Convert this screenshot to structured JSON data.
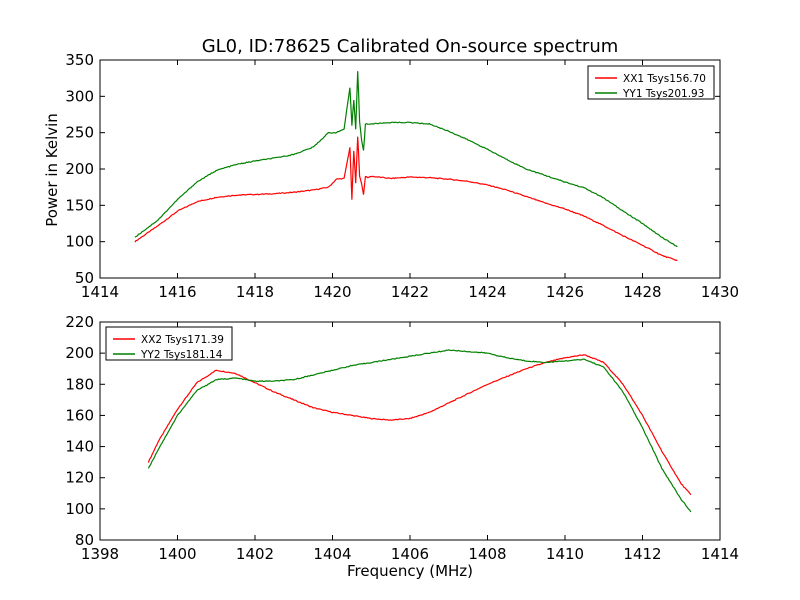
{
  "chart_data": [
    {
      "type": "line",
      "title": "GL0, ID:78625 Calibrated On-source spectrum",
      "xlabel": "",
      "ylabel": "Power in Kelvin",
      "xlim": [
        1414,
        1430
      ],
      "ylim": [
        50,
        350
      ],
      "xticks": [
        "1414",
        "1416",
        "1418",
        "1420",
        "1422",
        "1424",
        "1426",
        "1428",
        "1430"
      ],
      "yticks": [
        "50",
        "100",
        "150",
        "200",
        "250",
        "300",
        "350"
      ],
      "legend_position": "top-right",
      "grid": false,
      "series": [
        {
          "name": "XX1 Tsys156.70",
          "color": "#ff0000",
          "x": [
            1414.9,
            1415.5,
            1416.0,
            1416.5,
            1417.0,
            1417.5,
            1418.0,
            1418.5,
            1419.0,
            1419.5,
            1419.9,
            1420.1,
            1420.3,
            1420.45,
            1420.5,
            1420.55,
            1420.6,
            1420.65,
            1420.7,
            1420.75,
            1420.8,
            1420.85,
            1420.9,
            1421.0,
            1421.5,
            1422.0,
            1422.5,
            1423.0,
            1423.5,
            1424.0,
            1424.5,
            1425.0,
            1425.5,
            1426.0,
            1426.5,
            1427.0,
            1427.5,
            1428.0,
            1428.5,
            1428.9
          ],
          "values": [
            100,
            122,
            142,
            155,
            161,
            164,
            165,
            166,
            168,
            171,
            175,
            186,
            187,
            230,
            158,
            225,
            180,
            245,
            190,
            180,
            165,
            190,
            188,
            190,
            187,
            189,
            188,
            186,
            183,
            178,
            171,
            162,
            153,
            145,
            135,
            122,
            108,
            95,
            81,
            74
          ]
        },
        {
          "name": "YY1 Tsys201.93",
          "color": "#008000",
          "x": [
            1414.9,
            1415.5,
            1416.0,
            1416.5,
            1417.0,
            1417.5,
            1418.0,
            1418.5,
            1419.0,
            1419.5,
            1419.9,
            1420.1,
            1420.3,
            1420.45,
            1420.5,
            1420.55,
            1420.6,
            1420.65,
            1420.7,
            1420.75,
            1420.8,
            1420.85,
            1420.9,
            1421.0,
            1421.5,
            1422.0,
            1422.5,
            1423.0,
            1423.5,
            1424.0,
            1424.5,
            1425.0,
            1425.5,
            1426.0,
            1426.5,
            1427.0,
            1427.5,
            1428.0,
            1428.5,
            1428.9
          ],
          "values": [
            106,
            130,
            158,
            182,
            198,
            206,
            211,
            215,
            220,
            230,
            250,
            250,
            255,
            312,
            260,
            295,
            255,
            335,
            265,
            240,
            225,
            262,
            262,
            262,
            264,
            264,
            262,
            252,
            240,
            227,
            213,
            200,
            191,
            182,
            174,
            160,
            142,
            125,
            106,
            93
          ]
        }
      ]
    },
    {
      "type": "line",
      "title": "",
      "xlabel": "Frequency (MHz)",
      "ylabel": "",
      "xlim": [
        1398,
        1414
      ],
      "ylim": [
        80,
        220
      ],
      "xticks": [
        "1398",
        "1400",
        "1402",
        "1404",
        "1406",
        "1408",
        "1410",
        "1412",
        "1414"
      ],
      "yticks": [
        "80",
        "100",
        "120",
        "140",
        "160",
        "180",
        "200",
        "220"
      ],
      "legend_position": "top-left",
      "grid": false,
      "series": [
        {
          "name": "XX2 Tsys171.39",
          "color": "#ff0000",
          "x": [
            1399.25,
            1399.5,
            1400.0,
            1400.5,
            1401.0,
            1401.5,
            1402.0,
            1402.5,
            1403.0,
            1403.5,
            1404.0,
            1404.5,
            1405.0,
            1405.5,
            1406.0,
            1406.5,
            1407.0,
            1407.5,
            1408.0,
            1408.5,
            1409.0,
            1409.5,
            1410.0,
            1410.5,
            1411.0,
            1411.5,
            1412.0,
            1412.5,
            1413.0,
            1413.25
          ],
          "values": [
            130,
            143,
            164,
            181,
            189,
            187,
            181,
            175,
            170,
            165,
            162,
            160,
            158,
            157,
            158,
            162,
            168,
            174,
            180,
            185,
            190,
            194,
            197,
            199,
            194,
            180,
            160,
            137,
            116,
            109
          ]
        },
        {
          "name": "YY2 Tsys181.14",
          "color": "#008000",
          "x": [
            1399.25,
            1399.5,
            1400.0,
            1400.5,
            1401.0,
            1401.5,
            1402.0,
            1402.5,
            1403.0,
            1403.5,
            1404.0,
            1404.5,
            1405.0,
            1405.5,
            1406.0,
            1406.5,
            1407.0,
            1407.5,
            1408.0,
            1408.5,
            1409.0,
            1409.5,
            1410.0,
            1410.5,
            1411.0,
            1411.5,
            1412.0,
            1412.5,
            1413.0,
            1413.25
          ],
          "values": [
            126,
            138,
            160,
            176,
            183,
            184,
            182,
            182,
            183,
            186,
            189,
            192,
            194,
            196,
            198,
            200,
            202,
            201,
            200,
            197,
            195,
            194,
            195,
            196,
            191,
            175,
            152,
            126,
            106,
            98
          ]
        }
      ]
    }
  ]
}
